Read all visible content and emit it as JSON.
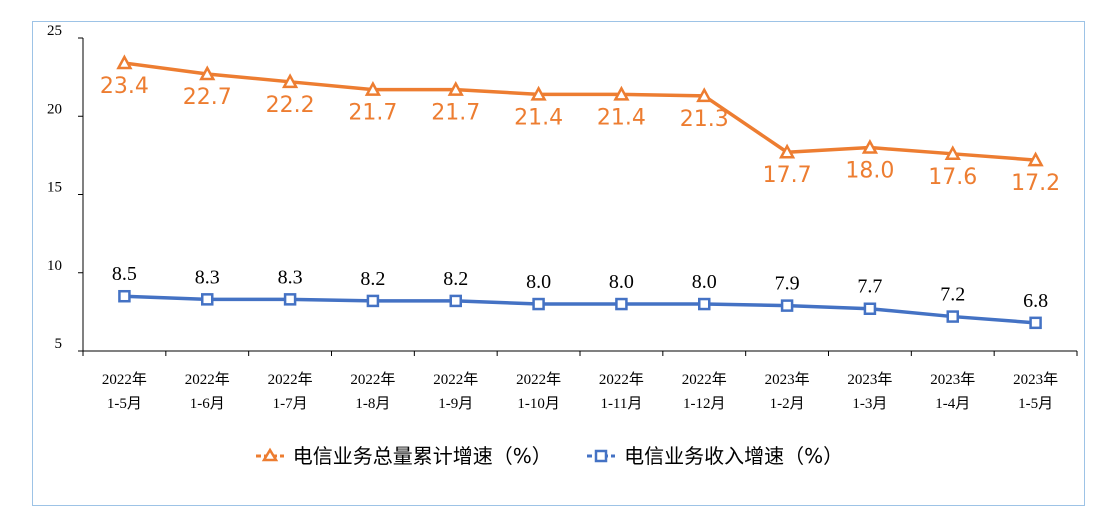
{
  "chart_data": {
    "type": "line",
    "categories": [
      [
        "2022年",
        "1-5月"
      ],
      [
        "2022年",
        "1-6月"
      ],
      [
        "2022年",
        "1-7月"
      ],
      [
        "2022年",
        "1-8月"
      ],
      [
        "2022年",
        "1-9月"
      ],
      [
        "2022年",
        "1-10月"
      ],
      [
        "2022年",
        "1-11月"
      ],
      [
        "2022年",
        "1-12月"
      ],
      [
        "2023年",
        "1-2月"
      ],
      [
        "2023年",
        "1-3月"
      ],
      [
        "2023年",
        "1-4月"
      ],
      [
        "2023年",
        "1-5月"
      ]
    ],
    "series": [
      {
        "name": "电信业务总量累计增速（%）",
        "color": "#ed7d31",
        "marker": "triangle",
        "values": [
          23.4,
          22.7,
          22.2,
          21.7,
          21.7,
          21.4,
          21.4,
          21.3,
          17.7,
          18.0,
          17.6,
          17.2
        ],
        "labels": [
          "23.4",
          "22.7",
          "22.2",
          "21.7",
          "21.7",
          "21.4",
          "21.4",
          "21.3",
          "17.7",
          "18.0",
          "17.6",
          "17.2"
        ]
      },
      {
        "name": "电信业务收入增速（%）",
        "color": "#4472c4",
        "marker": "square",
        "values": [
          8.5,
          8.3,
          8.3,
          8.2,
          8.2,
          8.0,
          8.0,
          8.0,
          7.9,
          7.7,
          7.2,
          6.8
        ],
        "labels": [
          "8.5",
          "8.3",
          "8.3",
          "8.2",
          "8.2",
          "8.0",
          "8.0",
          "8.0",
          "7.9",
          "7.7",
          "7.2",
          "6.8"
        ]
      }
    ],
    "ylim": [
      5,
      25
    ],
    "yticks": [
      "5",
      "10",
      "15",
      "20",
      "25"
    ],
    "legend": "bottom",
    "grid": false
  }
}
